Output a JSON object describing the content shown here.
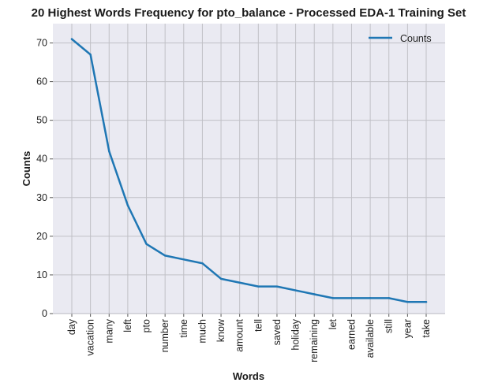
{
  "chart_data": {
    "type": "line",
    "title": "20 Highest Words Frequency for pto_balance - Processed EDA-1 Training Set",
    "xlabel": "Words",
    "ylabel": "Counts",
    "categories": [
      "day",
      "vacation",
      "many",
      "left",
      "pto",
      "number",
      "time",
      "much",
      "know",
      "amount",
      "tell",
      "saved",
      "holiday",
      "remaining",
      "let",
      "earned",
      "available",
      "still",
      "year",
      "take"
    ],
    "series": [
      {
        "name": "Counts",
        "color": "#1f77b4",
        "values": [
          71,
          67,
          42,
          28,
          18,
          15,
          14,
          13,
          9,
          8,
          7,
          7,
          6,
          5,
          4,
          4,
          4,
          4,
          3,
          3
        ]
      }
    ],
    "ylim": [
      0,
      75
    ],
    "yticks": [
      0,
      10,
      20,
      30,
      40,
      50,
      60,
      70
    ],
    "grid": true,
    "legend": "top-right"
  }
}
